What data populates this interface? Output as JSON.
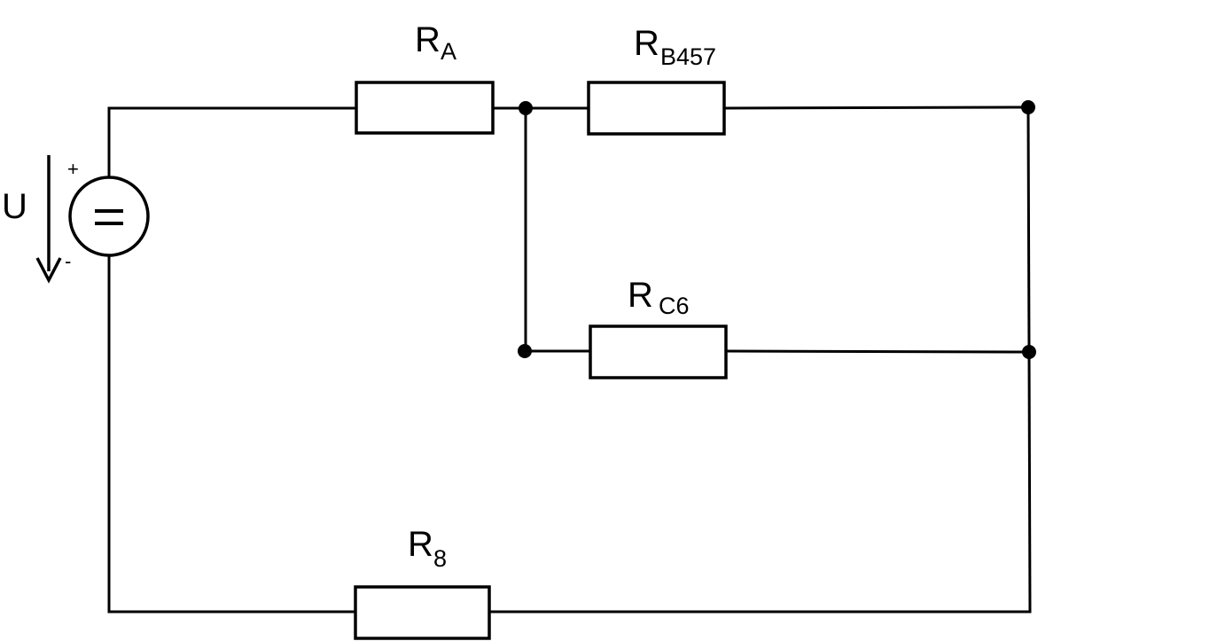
{
  "colors": {
    "stroke": "#000000",
    "background": "#ffffff"
  },
  "source": {
    "voltage_label": "U",
    "plus_sign": "+",
    "minus_sign": "-",
    "symbol": "="
  },
  "resistors": [
    {
      "id": "ra",
      "letter": "R",
      "subscript": "A"
    },
    {
      "id": "rb457",
      "letter": "R",
      "subscript": "B457"
    },
    {
      "id": "rc6",
      "letter": "R",
      "subscript": "C6"
    },
    {
      "id": "r8",
      "letter": "R",
      "subscript": "8"
    }
  ]
}
